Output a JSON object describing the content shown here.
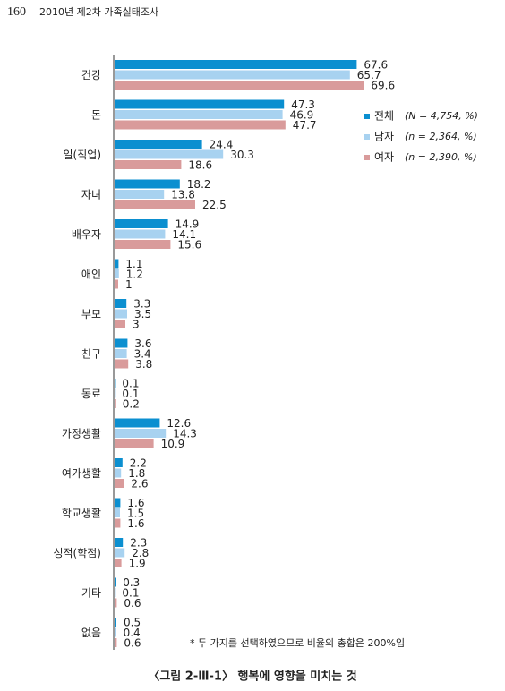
{
  "page": {
    "number": "160",
    "running_title": "2010년 제2차 가족실태조사"
  },
  "chart_data": {
    "type": "hbar",
    "categories": [
      "건강",
      "돈",
      "일(직업)",
      "자녀",
      "배우자",
      "애인",
      "부모",
      "친구",
      "동료",
      "가정생활",
      "여가생활",
      "학교생활",
      "성적(학점)",
      "기타",
      "없음"
    ],
    "series": [
      {
        "name": "전체",
        "note": "(N = 4,754, %)",
        "color": "#0b8fd0",
        "values": [
          67.6,
          47.3,
          24.4,
          18.2,
          14.9,
          1.1,
          3.3,
          3.6,
          0.1,
          12.6,
          2.2,
          1.6,
          2.3,
          0.3,
          0.5
        ]
      },
      {
        "name": "남자",
        "note": "(n = 2,364, %)",
        "color": "#a8d2f0",
        "values": [
          65.7,
          46.9,
          30.3,
          13.8,
          14.1,
          1.2,
          3.5,
          3.4,
          0.1,
          14.3,
          1.8,
          1.5,
          2.8,
          0.1,
          0.4
        ]
      },
      {
        "name": "여자",
        "note": "(n = 2,390, %)",
        "color": "#d99b9b",
        "values": [
          69.6,
          47.7,
          18.6,
          22.5,
          15.6,
          1,
          3,
          3.8,
          0.2,
          10.9,
          2.6,
          1.6,
          1.9,
          0.6,
          0.6
        ]
      }
    ],
    "footnote": "* 두 가지를 선택하였으므로 비율의 총합은 200%임",
    "caption": "〈그림 2-Ⅲ-1〉 행복에 영향을 미치는 것"
  }
}
